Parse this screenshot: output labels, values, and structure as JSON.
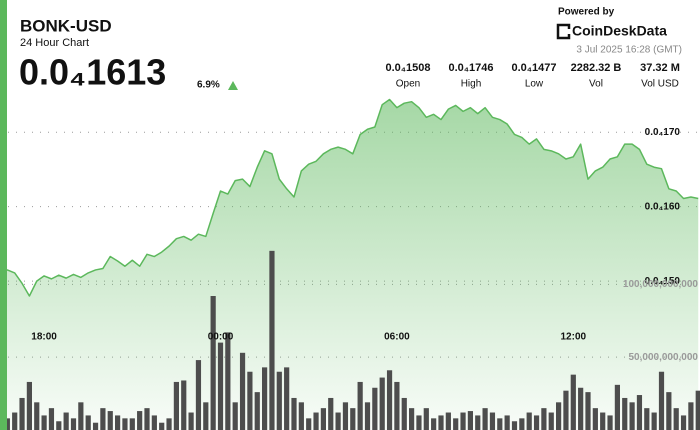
{
  "header": {
    "title": "BONK-USD",
    "subtitle": "24 Hour Chart",
    "price": "0.0₄1613",
    "change": "6.9%",
    "powered_by": "Powered by",
    "brand": "CoinDeskData",
    "timestamp": "3 Jul 2025 16:28 (GMT)",
    "stats": [
      {
        "value": "0.0₄1508",
        "label": "Open"
      },
      {
        "value": "0.0₄1746",
        "label": "High"
      },
      {
        "value": "0.0₄1477",
        "label": "Low"
      },
      {
        "value": "2282.32 B",
        "label": "Vol"
      },
      {
        "value": "37.32 M",
        "label": "Vol USD"
      }
    ]
  },
  "chart_data": {
    "type": "combo",
    "categories": [
      null,
      null,
      null,
      null,
      null,
      null,
      "18:00",
      null,
      null,
      null,
      null,
      null,
      null,
      null,
      null,
      null,
      null,
      null,
      null,
      null,
      null,
      null,
      null,
      null,
      null,
      null,
      null,
      null,
      null,
      null,
      "00:00",
      null,
      null,
      null,
      null,
      null,
      null,
      null,
      null,
      null,
      null,
      null,
      null,
      null,
      null,
      null,
      null,
      null,
      null,
      null,
      null,
      null,
      null,
      null,
      "06:00",
      null,
      null,
      null,
      null,
      null,
      null,
      null,
      null,
      null,
      null,
      null,
      null,
      null,
      null,
      null,
      null,
      null,
      null,
      null,
      null,
      null,
      null,
      null,
      "12:00",
      null,
      null,
      null,
      null,
      null,
      null,
      null,
      null,
      null,
      null,
      null,
      null,
      null,
      null,
      null,
      null,
      null
    ],
    "series": [
      {
        "type": "area",
        "axis": "y",
        "color": "#5cb85c",
        "values": [
          1.511e-05,
          1.515e-05,
          1.511e-05,
          1.497e-05,
          1.48e-05,
          1.5e-05,
          1.507e-05,
          1.503e-05,
          1.508e-05,
          1.504e-05,
          1.509e-05,
          1.505e-05,
          1.511e-05,
          1.515e-05,
          1.517e-05,
          1.533e-05,
          1.527e-05,
          1.52e-05,
          1.528e-05,
          1.52e-05,
          1.536e-05,
          1.533e-05,
          1.539e-05,
          1.547e-05,
          1.557e-05,
          1.56e-05,
          1.555e-05,
          1.563e-05,
          1.56e-05,
          1.591e-05,
          1.621e-05,
          1.617e-05,
          1.635e-05,
          1.637e-05,
          1.627e-05,
          1.653e-05,
          1.675e-05,
          1.671e-05,
          1.637e-05,
          1.624e-05,
          1.613e-05,
          1.648e-05,
          1.657e-05,
          1.661e-05,
          1.671e-05,
          1.677e-05,
          1.68e-05,
          1.677e-05,
          1.671e-05,
          1.697e-05,
          1.704e-05,
          1.707e-05,
          1.737e-05,
          1.744e-05,
          1.733e-05,
          1.739e-05,
          1.741e-05,
          1.733e-05,
          1.72e-05,
          1.724e-05,
          1.717e-05,
          1.731e-05,
          1.736e-05,
          1.728e-05,
          1.733e-05,
          1.725e-05,
          1.733e-05,
          1.72e-05,
          1.717e-05,
          1.711e-05,
          1.697e-05,
          1.693e-05,
          1.684e-05,
          1.691e-05,
          1.677e-05,
          1.675e-05,
          1.671e-05,
          1.664e-05,
          1.667e-05,
          1.684e-05,
          1.637e-05,
          1.648e-05,
          1.653e-05,
          1.664e-05,
          1.667e-05,
          1.684e-05,
          1.684e-05,
          1.677e-05,
          1.657e-05,
          1.653e-05,
          1.651e-05,
          1.624e-05,
          1.621e-05,
          1.611e-05,
          1.613e-05,
          1.611e-05
        ]
      },
      {
        "type": "bar",
        "axis": "y2",
        "color": "#4d4d4d",
        "values": [
          5000000000,
          8000000000,
          12000000000,
          22000000000,
          33000000000,
          19000000000,
          10000000000,
          15000000000,
          6000000000,
          12000000000,
          8000000000,
          19000000000,
          10000000000,
          5000000000,
          15000000000,
          13000000000,
          10000000000,
          8000000000,
          8000000000,
          13000000000,
          15000000000,
          10000000000,
          5000000000,
          8000000000,
          33000000000,
          34000000000,
          12000000000,
          48000000000,
          19000000000,
          92000000000,
          60000000000,
          67000000000,
          19000000000,
          53000000000,
          40000000000,
          26000000000,
          43000000000,
          123000000000,
          40000000000,
          43000000000,
          22000000000,
          19000000000,
          8000000000,
          12000000000,
          15000000000,
          22000000000,
          12000000000,
          19000000000,
          15000000000,
          33000000000,
          19000000000,
          29000000000,
          36000000000,
          41000000000,
          33000000000,
          22000000000,
          15000000000,
          10000000000,
          15000000000,
          8000000000,
          10000000000,
          12000000000,
          8000000000,
          12000000000,
          13000000000,
          10000000000,
          15000000000,
          12000000000,
          8000000000,
          10000000000,
          6000000000,
          8000000000,
          12000000000,
          10000000000,
          15000000000,
          12000000000,
          19000000000,
          27000000000,
          38000000000,
          29000000000,
          26000000000,
          15000000000,
          12000000000,
          10000000000,
          31000000000,
          22000000000,
          19000000000,
          24000000000,
          15000000000,
          12000000000,
          40000000000,
          26000000000,
          15000000000,
          10000000000,
          19000000000,
          27000000000
        ]
      }
    ],
    "ylim": [
      1.3e-05,
      1.75e-05
    ],
    "yticks": [
      {
        "value": 1.7e-05,
        "label": "0.0₄170"
      },
      {
        "value": 1.6e-05,
        "label": "0.0₄160"
      },
      {
        "value": 1.5e-05,
        "label": "0.0₄150"
      }
    ],
    "y2lim": [
      0,
      230000000000
    ],
    "y2ticks": [
      {
        "value": 100000000000,
        "label": "100,000,000,000"
      },
      {
        "value": 50000000000,
        "label": "50,000,000,000"
      }
    ],
    "grid": true
  }
}
